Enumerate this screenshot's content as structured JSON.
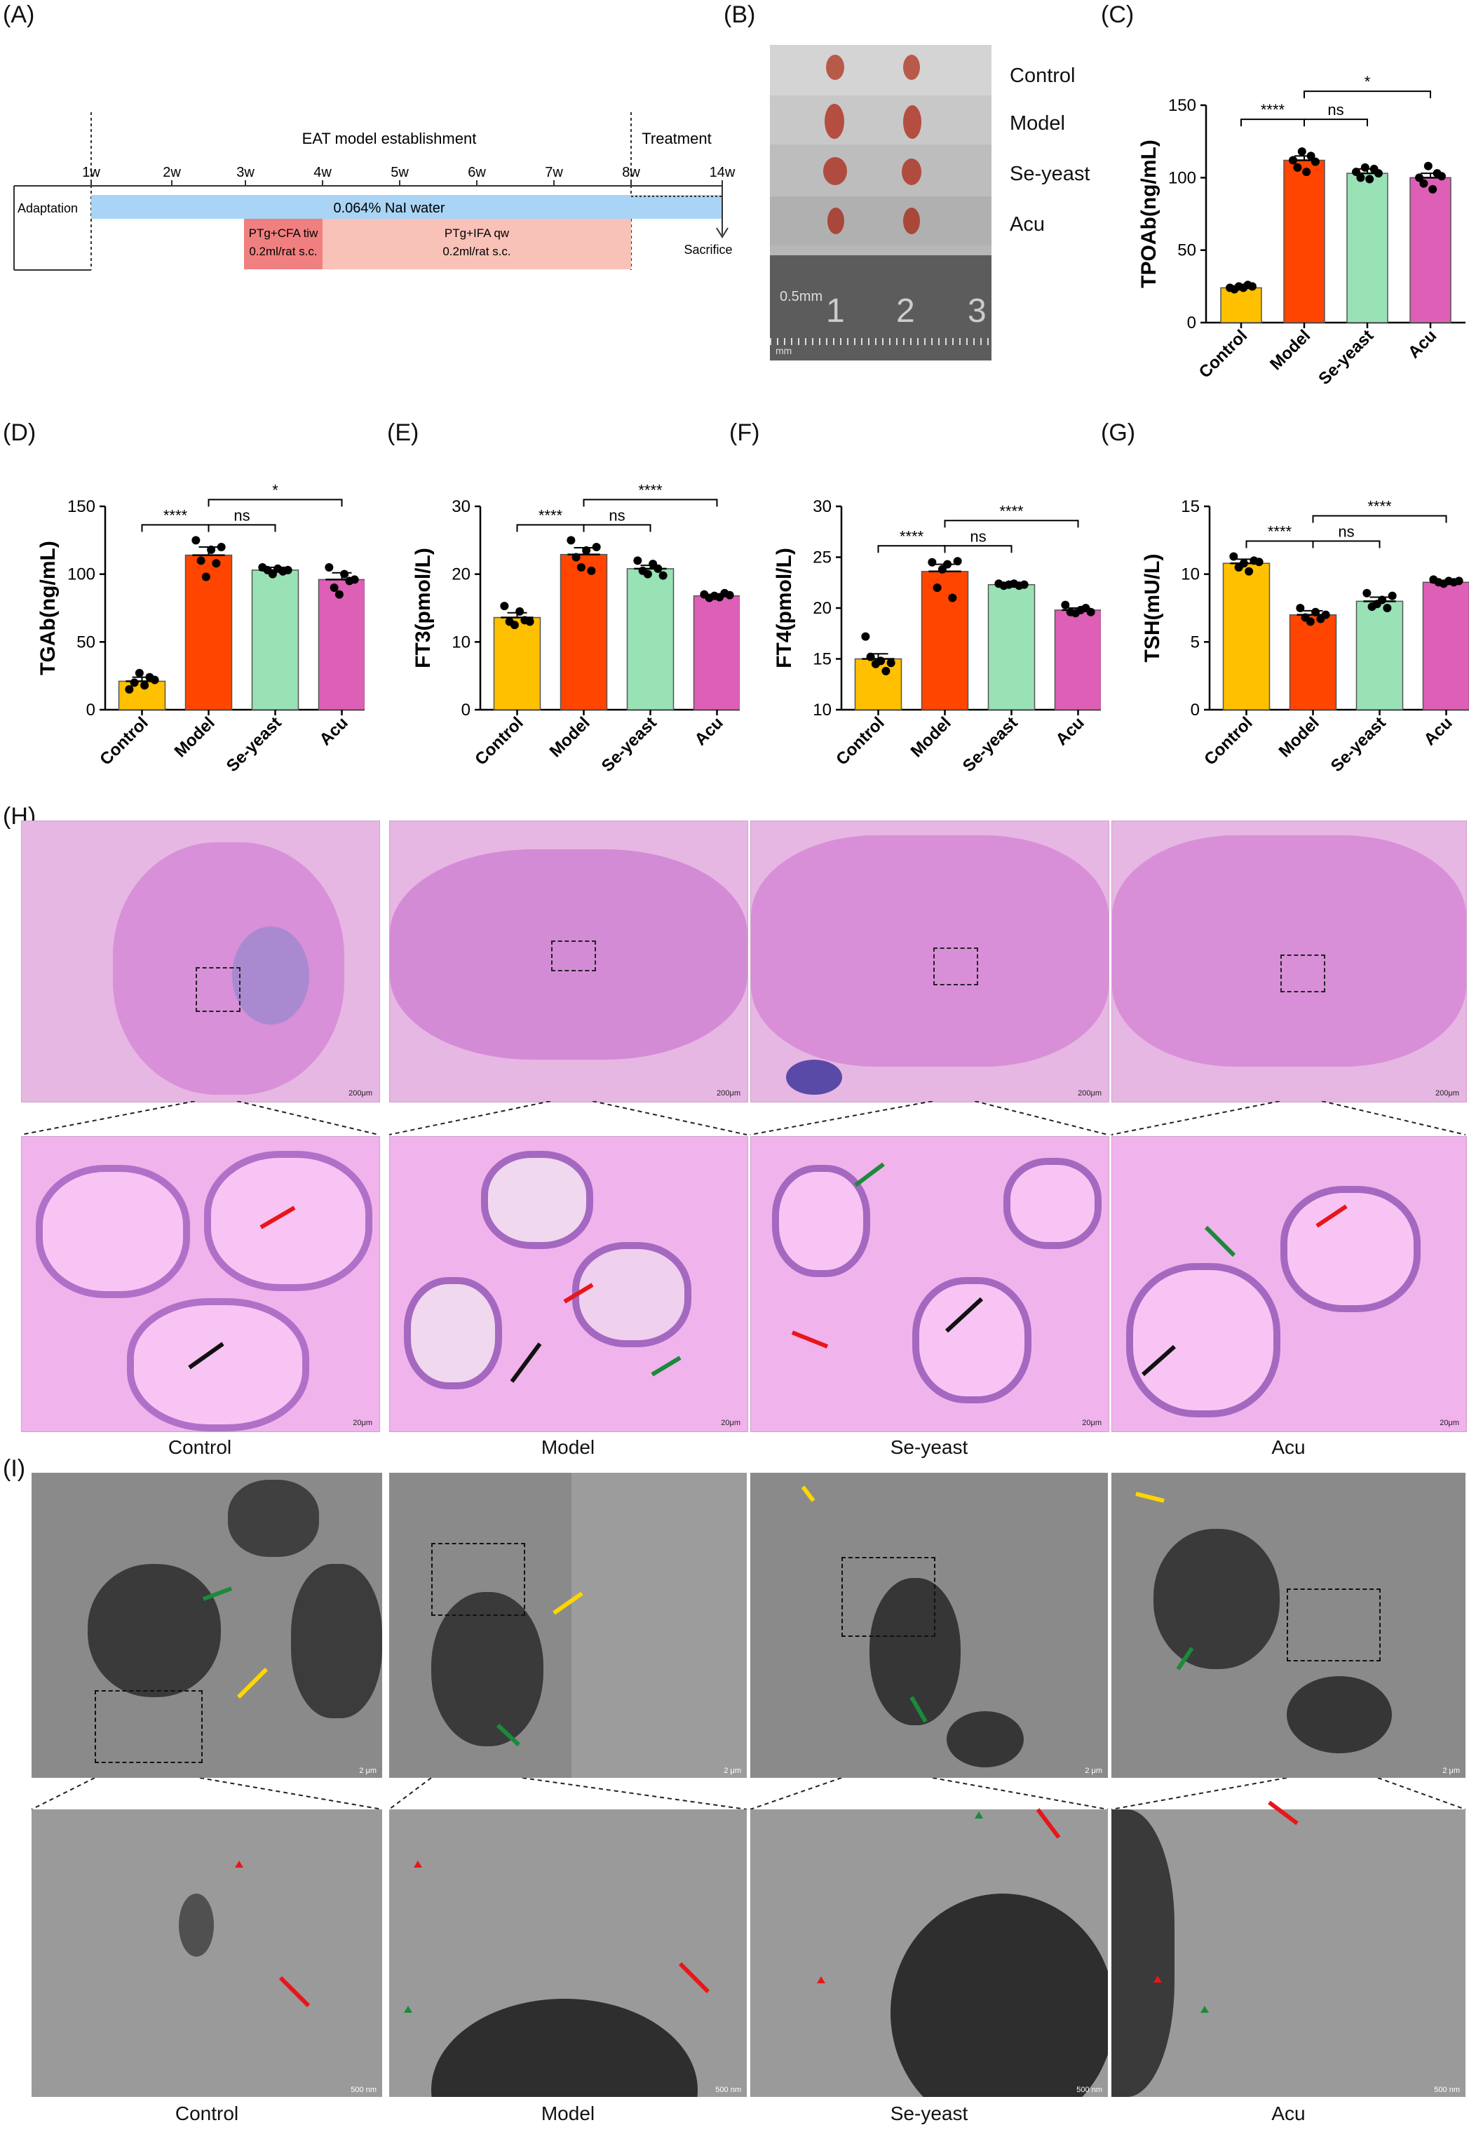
{
  "panel_labels": {
    "A": "(A)",
    "B": "(B)",
    "C": "(C)",
    "D": "(D)",
    "E": "(E)",
    "F": "(F)",
    "G": "(G)",
    "H": "(H)",
    "I": "(I)"
  },
  "timeline": {
    "header_model": "EAT model establishment",
    "header_treatment": "Treatment",
    "weeks": [
      "1w",
      "2w",
      "3w",
      "4w",
      "5w",
      "6w",
      "7w",
      "8w",
      "14w"
    ],
    "adaptation": "Adaptation",
    "water": "0.064% NaI water",
    "cfa_line1": "PTg+CFA tiw",
    "cfa_line2": "0.2ml/rat s.c.",
    "ifa_line1": "PTg+IFA qw",
    "ifa_line2": "0.2ml/rat s.c.",
    "sacrifice": "Sacrifice",
    "colors": {
      "water": "#a9d4f5",
      "cfa": "#f08080",
      "ifa": "#f9c2b8"
    }
  },
  "photo": {
    "groups": [
      "Control",
      "Model",
      "Se-yeast",
      "Acu"
    ],
    "ruler_unit1": "0.5mm",
    "ruler_unit2": "mm",
    "ruler_numbers": [
      "1",
      "2",
      "3"
    ]
  },
  "chart_data": [
    {
      "id": "C",
      "type": "bar",
      "categories": [
        "Control",
        "Model",
        "Se-yeast",
        "Acu"
      ],
      "values": [
        24,
        112,
        103,
        100
      ],
      "errors": [
        1,
        3,
        3,
        3
      ],
      "ylabel": "TPOAb(ng/mL)",
      "ylim": [
        0,
        150
      ],
      "yticks": [
        0,
        50,
        100,
        150
      ],
      "points": [
        [
          24,
          23,
          25,
          24,
          26,
          25
        ],
        [
          112,
          107,
          118,
          104,
          115,
          111
        ],
        [
          104,
          100,
          107,
          99,
          106,
          103
        ],
        [
          100,
          96,
          108,
          92,
          103,
          101
        ]
      ],
      "sig": [
        {
          "a": 0,
          "b": 1,
          "label": "****"
        },
        {
          "a": 1,
          "b": 2,
          "label": "ns"
        },
        {
          "a": 1,
          "b": 3,
          "label": "*"
        }
      ],
      "colors": [
        "#ffc000",
        "#ff4500",
        "#98e2b5",
        "#de5fb6"
      ]
    },
    {
      "id": "D",
      "type": "bar",
      "categories": [
        "Control",
        "Model",
        "Se-yeast",
        "Acu"
      ],
      "values": [
        21,
        114,
        103,
        96
      ],
      "errors": [
        3,
        6,
        2,
        5
      ],
      "ylabel": "TGAb(ng/mL)",
      "ylim": [
        0,
        150
      ],
      "yticks": [
        0,
        50,
        100,
        150
      ],
      "points": [
        [
          15,
          20,
          27,
          18,
          24,
          22
        ],
        [
          125,
          110,
          98,
          118,
          108,
          120
        ],
        [
          105,
          103,
          100,
          104,
          102,
          103
        ],
        [
          105,
          90,
          85,
          100,
          95,
          96
        ]
      ],
      "sig": [
        {
          "a": 0,
          "b": 1,
          "label": "****"
        },
        {
          "a": 1,
          "b": 2,
          "label": "ns"
        },
        {
          "a": 1,
          "b": 3,
          "label": "*"
        }
      ],
      "colors": [
        "#ffc000",
        "#ff4500",
        "#98e2b5",
        "#de5fb6"
      ]
    },
    {
      "id": "E",
      "type": "bar",
      "categories": [
        "Control",
        "Model",
        "Se-yeast",
        "Acu"
      ],
      "values": [
        13.6,
        22.9,
        20.8,
        16.8
      ],
      "errors": [
        0.7,
        1.0,
        0.5,
        0.2
      ],
      "ylabel": "FT3(pmol/L)",
      "ylim": [
        0,
        30
      ],
      "yticks": [
        0,
        10,
        20,
        30
      ],
      "points": [
        [
          15.3,
          13.0,
          12.5,
          14.5,
          13.2,
          13.0
        ],
        [
          25.0,
          22.5,
          21.0,
          23.5,
          20.5,
          24.0
        ],
        [
          22.0,
          20.5,
          20.0,
          21.5,
          20.8,
          19.8
        ],
        [
          17.0,
          16.5,
          16.8,
          16.6,
          17.2,
          16.9
        ]
      ],
      "sig": [
        {
          "a": 0,
          "b": 1,
          "label": "****"
        },
        {
          "a": 1,
          "b": 2,
          "label": "ns"
        },
        {
          "a": 1,
          "b": 3,
          "label": "****"
        }
      ],
      "colors": [
        "#ffc000",
        "#ff4500",
        "#98e2b5",
        "#de5fb6"
      ]
    },
    {
      "id": "F",
      "type": "bar",
      "categories": [
        "Control",
        "Model",
        "Se-yeast",
        "Acu"
      ],
      "values": [
        15.0,
        23.6,
        22.3,
        19.8
      ],
      "errors": [
        0.5,
        0.7,
        0.1,
        0.2
      ],
      "ylabel": "FT4(pmol/L)",
      "ylim": [
        10,
        30
      ],
      "yticks": [
        10,
        15,
        20,
        25,
        30
      ],
      "points": [
        [
          17.2,
          15.2,
          14.5,
          14.8,
          13.8,
          14.6
        ],
        [
          24.5,
          22.0,
          23.8,
          24.3,
          21.0,
          24.6
        ],
        [
          22.4,
          22.2,
          22.3,
          22.4,
          22.2,
          22.3
        ],
        [
          20.3,
          19.6,
          19.5,
          19.8,
          20.0,
          19.6
        ]
      ],
      "sig": [
        {
          "a": 0,
          "b": 1,
          "label": "****"
        },
        {
          "a": 1,
          "b": 2,
          "label": "ns"
        },
        {
          "a": 1,
          "b": 3,
          "label": "****"
        }
      ],
      "colors": [
        "#ffc000",
        "#ff4500",
        "#98e2b5",
        "#de5fb6"
      ]
    },
    {
      "id": "G",
      "type": "bar",
      "categories": [
        "Control",
        "Model",
        "Se-yeast",
        "Acu"
      ],
      "values": [
        10.8,
        7.0,
        8.0,
        9.4
      ],
      "errors": [
        0.3,
        0.3,
        0.3,
        0.1
      ],
      "ylabel": "TSH(mU/L)",
      "ylim": [
        0,
        15
      ],
      "yticks": [
        0,
        5,
        10,
        15
      ],
      "points": [
        [
          11.3,
          10.5,
          10.8,
          10.2,
          11.0,
          10.9
        ],
        [
          7.5,
          6.8,
          6.5,
          7.2,
          6.7,
          7.0
        ],
        [
          8.6,
          7.6,
          7.8,
          8.1,
          7.5,
          8.4
        ],
        [
          9.6,
          9.4,
          9.3,
          9.5,
          9.4,
          9.5
        ]
      ],
      "sig": [
        {
          "a": 0,
          "b": 1,
          "label": "****"
        },
        {
          "a": 1,
          "b": 2,
          "label": "ns"
        },
        {
          "a": 1,
          "b": 3,
          "label": "****"
        }
      ],
      "colors": [
        "#ffc000",
        "#ff4500",
        "#98e2b5",
        "#de5fb6"
      ]
    }
  ],
  "histology": {
    "captions": [
      "Control",
      "Model",
      "Se-yeast",
      "Acu"
    ],
    "scale_low": "200μm",
    "scale_high": "20μm"
  },
  "em": {
    "captions": [
      "Control",
      "Model",
      "Se-yeast",
      "Acu"
    ],
    "scale_low": "2 μm",
    "scale_high": "500 nm"
  }
}
